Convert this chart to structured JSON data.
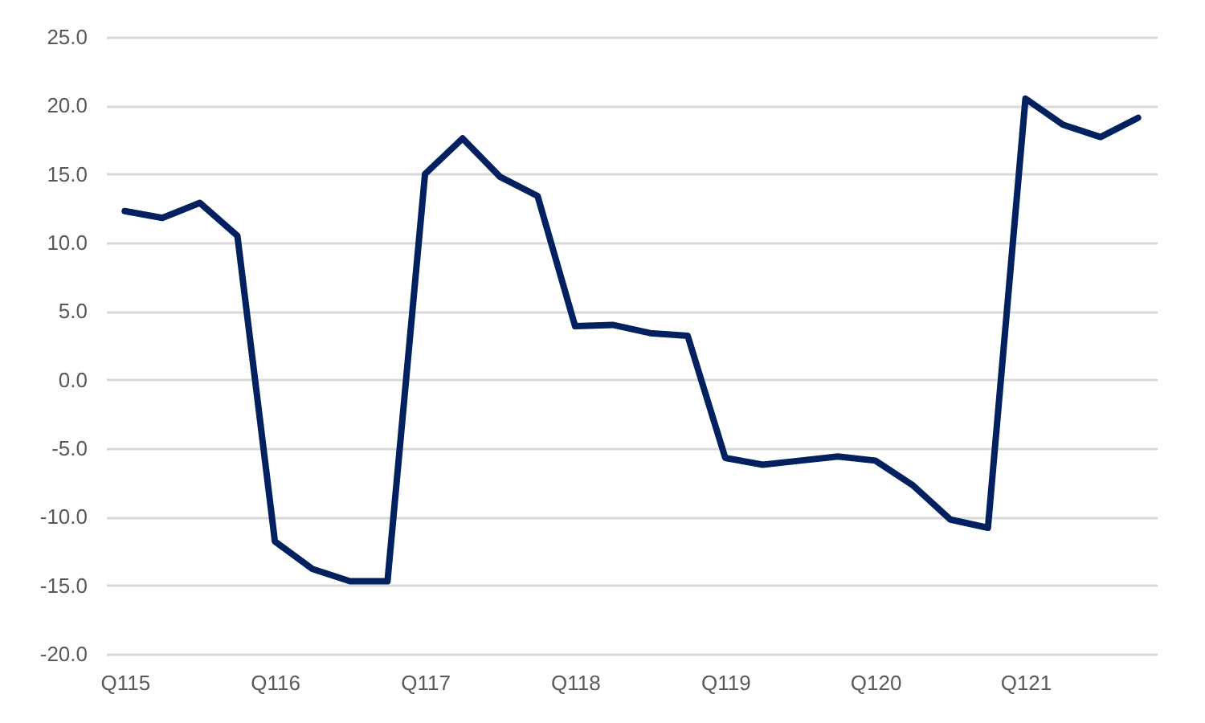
{
  "chart_data": {
    "type": "line",
    "categories": [
      "Q115",
      null,
      null,
      null,
      "Q116",
      null,
      null,
      null,
      "Q117",
      null,
      null,
      null,
      "Q118",
      null,
      null,
      null,
      "Q119",
      null,
      null,
      null,
      "Q120",
      null,
      null,
      null,
      "Q121",
      null,
      null,
      null
    ],
    "series": [
      {
        "color": "#002060",
        "values": [
          12.3,
          11.8,
          12.9,
          10.5,
          -11.8,
          -13.8,
          -14.7,
          -14.7,
          15.0,
          17.6,
          14.8,
          13.4,
          3.9,
          4.0,
          3.4,
          3.2,
          -5.7,
          -6.2,
          -5.9,
          -5.6,
          -5.9,
          -7.7,
          -10.2,
          -10.8,
          20.5,
          18.6,
          17.7,
          19.1
        ]
      }
    ],
    "ylim": [
      -20,
      25
    ],
    "yticks": [
      {
        "value": -20,
        "label": "-20.0"
      },
      {
        "value": -15,
        "label": "-15.0"
      },
      {
        "value": -10,
        "label": "-10.0"
      },
      {
        "value": -5,
        "label": "-5.0"
      },
      {
        "value": 0,
        "label": "0.0"
      },
      {
        "value": 5,
        "label": "5.0"
      },
      {
        "value": 10,
        "label": "10.0"
      },
      {
        "value": 15,
        "label": "15.0"
      },
      {
        "value": 20,
        "label": "20.0"
      },
      {
        "value": 25,
        "label": "25.0"
      }
    ],
    "grid": "y",
    "marker": "none",
    "line_style": "solid"
  }
}
